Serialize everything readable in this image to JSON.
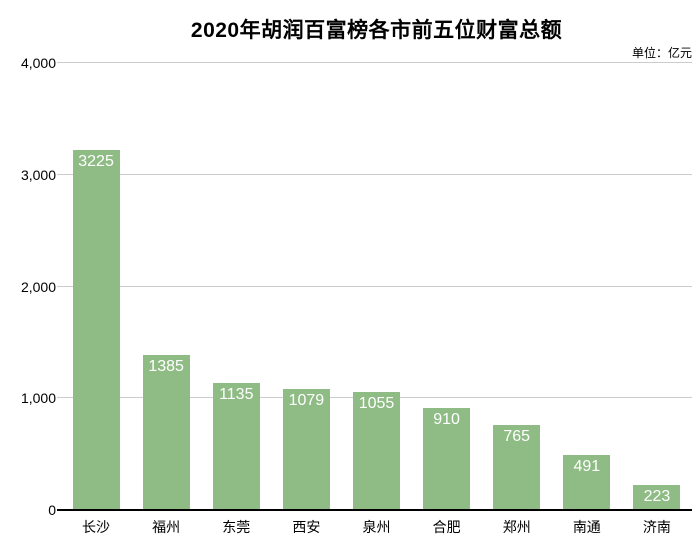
{
  "title": "2020年胡润百富榜各市前五位财富总额",
  "unit_label": "单位：亿元",
  "colors": {
    "bar": "#8FBC85",
    "gridline": "#cccccc",
    "baseline": "#000000",
    "value_label": "#ffffff",
    "text": "#000000"
  },
  "chart_data": {
    "type": "bar",
    "title": "2020年胡润百富榜各市前五位财富总额",
    "unit": "单位：亿元",
    "categories": [
      "长沙",
      "福州",
      "东莞",
      "西安",
      "泉州",
      "合肥",
      "郑州",
      "南通",
      "济南"
    ],
    "values": [
      3225,
      1385,
      1135,
      1079,
      1055,
      910,
      765,
      491,
      223
    ],
    "xlabel": "",
    "ylabel": "",
    "ylim": [
      0,
      4000
    ],
    "yticks": [
      0,
      1000,
      2000,
      3000,
      4000
    ],
    "ytick_labels": [
      "0",
      "1,000",
      "2,000",
      "3,000",
      "4,000"
    ],
    "grid": true,
    "legend": false,
    "value_labels_position": "inside-top",
    "bar_color": "#8FBC85"
  }
}
